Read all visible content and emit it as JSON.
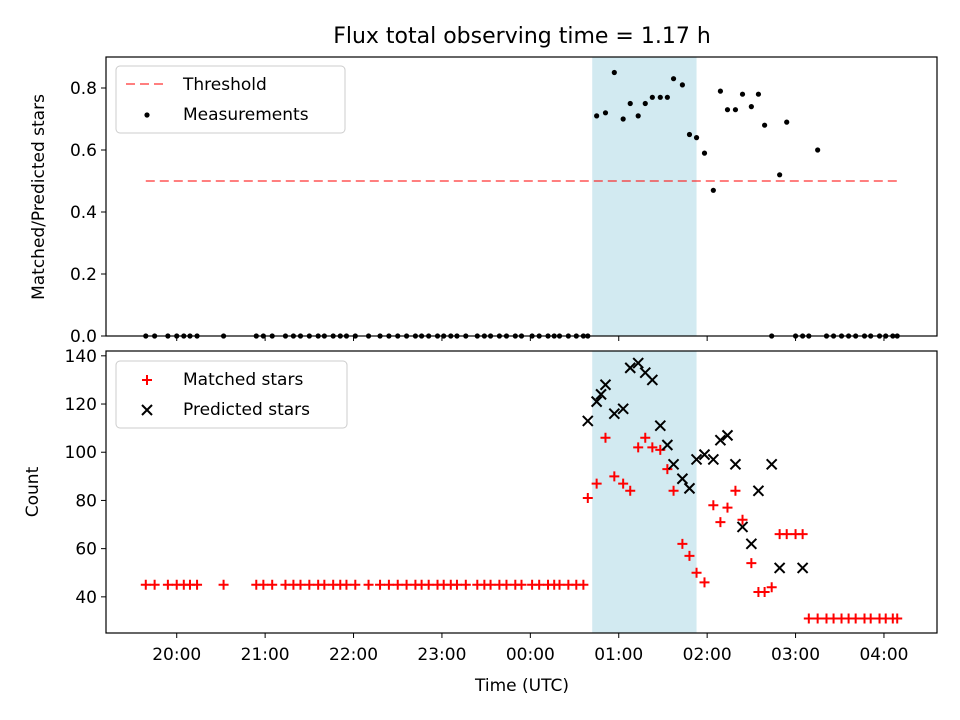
{
  "title": "Flux total observing time = 1.17 h",
  "chart_data": [
    {
      "type": "scatter",
      "ylabel": "Matched/Predicted stars",
      "xlabel": "",
      "ylim": [
        0,
        0.9
      ],
      "yticks": [
        0.0,
        0.2,
        0.4,
        0.6,
        0.8
      ],
      "ytick_labels": [
        "0.0",
        "0.2",
        "0.4",
        "0.6",
        "0.8"
      ],
      "xlim_hours": [
        -4.8,
        4.6
      ],
      "highlight_span_hours": [
        0.7,
        1.88
      ],
      "highlight_color": "#add8e6",
      "legend": {
        "placement": "upper-left",
        "entries": [
          "Threshold",
          "Measurements"
        ]
      },
      "threshold": {
        "name": "Threshold",
        "value": 0.5,
        "x_range_hours": [
          -4.35,
          4.15
        ],
        "color": "#ff0000",
        "style": "dashed"
      },
      "series": [
        {
          "name": "Measurements",
          "color": "#000000",
          "marker": "dot",
          "x_hours": [
            -4.35,
            -4.25,
            -4.1,
            -4.0,
            -3.92,
            -3.85,
            -3.77,
            -3.47,
            -3.1,
            -3.02,
            -2.92,
            -2.77,
            -2.68,
            -2.6,
            -2.5,
            -2.4,
            -2.33,
            -2.23,
            -2.15,
            -2.08,
            -1.98,
            -1.83,
            -1.7,
            -1.6,
            -1.5,
            -1.4,
            -1.3,
            -1.23,
            -1.15,
            -1.05,
            -0.98,
            -0.9,
            -0.83,
            -0.73,
            -0.6,
            -0.52,
            -0.45,
            -0.35,
            -0.27,
            -0.17,
            -0.1,
            0.02,
            0.1,
            0.2,
            0.27,
            0.33,
            0.43,
            0.52,
            0.6,
            0.65,
            0.75,
            0.85,
            0.95,
            1.05,
            1.13,
            1.22,
            1.3,
            1.38,
            1.47,
            1.55,
            1.62,
            1.72,
            1.8,
            1.88,
            1.97,
            2.07,
            2.15,
            2.23,
            2.32,
            2.4,
            2.5,
            2.58,
            2.65,
            2.73,
            2.82,
            2.9,
            3.0,
            3.08,
            3.15,
            3.25,
            3.35,
            3.43,
            3.52,
            3.6,
            3.68,
            3.78,
            3.85,
            3.95,
            4.02,
            4.1,
            4.15
          ],
          "y": [
            0,
            0,
            0,
            0,
            0,
            0,
            0,
            0,
            0,
            0,
            0,
            0,
            0,
            0,
            0,
            0,
            0,
            0,
            0,
            0,
            0,
            0,
            0,
            0,
            0,
            0,
            0,
            0,
            0,
            0,
            0,
            0,
            0,
            0,
            0,
            0,
            0,
            0,
            0,
            0,
            0,
            0,
            0,
            0,
            0,
            0,
            0,
            0,
            0,
            0,
            0.71,
            0.72,
            0.85,
            0.7,
            0.75,
            0.71,
            0.75,
            0.77,
            0.77,
            0.77,
            0.83,
            0.81,
            0.65,
            0.64,
            0.59,
            0.47,
            0.79,
            0.73,
            0.73,
            0.78,
            0.74,
            0.78,
            0.68,
            0,
            0.52,
            0.69,
            0,
            0,
            0,
            0.6,
            0,
            0,
            0,
            0,
            0,
            0,
            0,
            0,
            0,
            0,
            0
          ]
        }
      ]
    },
    {
      "type": "scatter",
      "ylabel": "Count",
      "xlabel": "Time (UTC)",
      "ylim": [
        25,
        142
      ],
      "yticks": [
        40,
        60,
        80,
        100,
        120,
        140
      ],
      "ytick_labels": [
        "40",
        "60",
        "80",
        "100",
        "120",
        "140"
      ],
      "xlim_hours": [
        -4.8,
        4.6
      ],
      "xticks_hours": [
        -4,
        -3,
        -2,
        -1,
        0,
        1,
        2,
        3,
        4
      ],
      "xtick_labels": [
        "20:00",
        "21:00",
        "22:00",
        "23:00",
        "00:00",
        "01:00",
        "02:00",
        "03:00",
        "04:00"
      ],
      "highlight_span_hours": [
        0.7,
        1.88
      ],
      "highlight_color": "#add8e6",
      "legend": {
        "placement": "upper-left",
        "entries": [
          "Matched stars",
          "Predicted stars"
        ]
      },
      "series": [
        {
          "name": "Matched stars",
          "color": "#ff0000",
          "marker": "plus",
          "x_hours": [
            -4.35,
            -4.25,
            -4.1,
            -4.0,
            -3.92,
            -3.85,
            -3.77,
            -3.47,
            -3.1,
            -3.02,
            -2.92,
            -2.77,
            -2.68,
            -2.6,
            -2.5,
            -2.4,
            -2.33,
            -2.23,
            -2.15,
            -2.08,
            -1.98,
            -1.83,
            -1.7,
            -1.6,
            -1.5,
            -1.4,
            -1.3,
            -1.23,
            -1.15,
            -1.05,
            -0.98,
            -0.9,
            -0.83,
            -0.73,
            -0.6,
            -0.52,
            -0.45,
            -0.35,
            -0.27,
            -0.17,
            -0.1,
            0.02,
            0.1,
            0.2,
            0.27,
            0.33,
            0.43,
            0.52,
            0.6,
            0.65,
            0.75,
            0.85,
            0.95,
            1.05,
            1.13,
            1.22,
            1.3,
            1.38,
            1.47,
            1.55,
            1.62,
            1.72,
            1.8,
            1.88,
            1.97,
            2.07,
            2.15,
            2.23,
            2.32,
            2.4,
            2.5,
            2.58,
            2.65,
            2.73,
            2.82,
            2.9,
            3.0,
            3.08,
            3.15,
            3.25,
            3.35,
            3.43,
            3.52,
            3.6,
            3.68,
            3.78,
            3.85,
            3.95,
            4.02,
            4.1,
            4.15
          ],
          "y": [
            45,
            45,
            45,
            45,
            45,
            45,
            45,
            45,
            45,
            45,
            45,
            45,
            45,
            45,
            45,
            45,
            45,
            45,
            45,
            45,
            45,
            45,
            45,
            45,
            45,
            45,
            45,
            45,
            45,
            45,
            45,
            45,
            45,
            45,
            45,
            45,
            45,
            45,
            45,
            45,
            45,
            45,
            45,
            45,
            45,
            45,
            45,
            45,
            45,
            81,
            87,
            106,
            90,
            87,
            84,
            102,
            106,
            102,
            101,
            93,
            84,
            62,
            57,
            50,
            46,
            78,
            71,
            77,
            84,
            72,
            54,
            42,
            42,
            44,
            66,
            66,
            66,
            66,
            31,
            31,
            31,
            31,
            31,
            31,
            31,
            31,
            31,
            31,
            31,
            31,
            31
          ]
        },
        {
          "name": "Predicted stars",
          "color": "#000000",
          "marker": "x",
          "x_hours": [
            0.65,
            0.75,
            0.8,
            0.85,
            0.95,
            1.05,
            1.13,
            1.22,
            1.3,
            1.38,
            1.47,
            1.55,
            1.62,
            1.72,
            1.8,
            1.88,
            1.97,
            2.07,
            2.15,
            2.23,
            2.32,
            2.4,
            2.5,
            2.58,
            2.73,
            2.82,
            3.08
          ],
          "y": [
            113,
            121,
            124,
            128,
            116,
            118,
            135,
            137,
            133,
            130,
            111,
            103,
            95,
            89,
            85,
            97,
            99,
            97,
            105,
            107,
            95,
            69,
            62,
            84,
            95,
            52,
            52
          ]
        }
      ]
    }
  ]
}
